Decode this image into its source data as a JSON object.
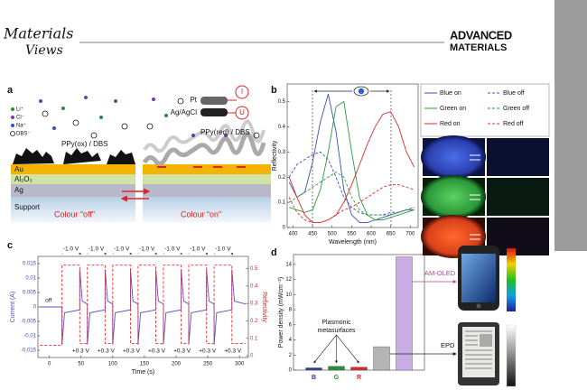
{
  "header": {
    "left_logo": [
      "Materials",
      "Views"
    ],
    "right_logo": [
      "ADVANCED",
      "MATERIALS"
    ]
  },
  "panel_a": {
    "label": "a",
    "ions": [
      "Li⁺",
      "Cl⁻",
      "Na⁺",
      "DBS⁻"
    ],
    "film_off": "PPy(ox) / DBS",
    "layers": [
      "Au",
      "Al₂O₃",
      "Ag",
      "Support"
    ],
    "state_off": "Colour “off”",
    "electrodes": [
      "Pt",
      "Ag/AgCl"
    ],
    "meters": [
      "I",
      "U"
    ],
    "film_on": "PPy(red) / DBS",
    "state_on": "Colour “on”"
  },
  "panel_b": {
    "label": "b",
    "chart_data": {
      "type": "line",
      "xlabel": "Wavelength (nm)",
      "ylabel": "Reflectivity",
      "x": [
        390,
        410,
        430,
        450,
        470,
        490,
        510,
        530,
        550,
        570,
        590,
        610,
        630,
        650,
        670,
        690,
        710
      ],
      "series": [
        {
          "name": "Blue on",
          "color": "#3a4fb8",
          "dash": false,
          "values": [
            0.18,
            0.12,
            0.14,
            0.26,
            0.42,
            0.53,
            0.38,
            0.15,
            0.05,
            0.02,
            0.02,
            0.03,
            0.04,
            0.05,
            0.06,
            0.07,
            0.07
          ]
        },
        {
          "name": "Blue off",
          "color": "#3a4fb8",
          "dash": true,
          "values": [
            0.2,
            0.25,
            0.27,
            0.29,
            0.3,
            0.27,
            0.2,
            0.12,
            0.08,
            0.06,
            0.05,
            0.05,
            0.05,
            0.06,
            0.06,
            0.07,
            0.08
          ]
        },
        {
          "name": "Green on",
          "color": "#2e9a3c",
          "dash": false,
          "values": [
            0.08,
            0.07,
            0.06,
            0.07,
            0.15,
            0.3,
            0.48,
            0.5,
            0.3,
            0.12,
            0.05,
            0.03,
            0.03,
            0.04,
            0.05,
            0.06,
            0.07
          ]
        },
        {
          "name": "Green off",
          "color": "#2e9a3c",
          "dash": true,
          "values": [
            0.1,
            0.12,
            0.14,
            0.16,
            0.18,
            0.2,
            0.22,
            0.2,
            0.12,
            0.07,
            0.05,
            0.05,
            0.05,
            0.05,
            0.06,
            0.07,
            0.08
          ]
        },
        {
          "name": "Red on",
          "color": "#e02a2a",
          "dash": false,
          "values": [
            0.2,
            0.12,
            0.05,
            0.02,
            0.02,
            0.03,
            0.05,
            0.1,
            0.17,
            0.25,
            0.33,
            0.4,
            0.45,
            0.46,
            0.4,
            0.3,
            0.24
          ]
        },
        {
          "name": "Red off",
          "color": "#e02a2a",
          "dash": true,
          "values": [
            0.12,
            0.06,
            0.03,
            0.02,
            0.02,
            0.03,
            0.05,
            0.07,
            0.08,
            0.1,
            0.12,
            0.14,
            0.16,
            0.17,
            0.17,
            0.16,
            0.15
          ]
        }
      ],
      "xlim": [
        385,
        720
      ],
      "ylim": [
        0,
        0.57
      ],
      "xticks": [
        400,
        450,
        500,
        550,
        600,
        650,
        700
      ],
      "yticks": [
        0,
        0.1,
        0.2,
        0.3,
        0.4,
        0.5
      ]
    }
  },
  "panel_c": {
    "label": "c",
    "on_labels": [
      "-1.0 V",
      "-1.0 V",
      "-1.0 V",
      "-1.0 V",
      "-1.0 V",
      "-1.0 V",
      "-1.0 V"
    ],
    "off_labels": [
      "+0.3 V",
      "+0.3 V",
      "+0.3 V",
      "+0.3 V",
      "+0.3 V",
      "+0.3 V",
      "+0.3 V"
    ],
    "start_label": "off",
    "chart_data": {
      "type": "line",
      "xlabel": "Time (s)",
      "ylabel": "Current (A)",
      "y2label": "Reflectivity",
      "series": [
        {
          "color": "#5b4fc4",
          "dash": false,
          "x": [
            -15,
            20,
            20,
            24,
            48,
            48,
            52,
            60,
            60,
            64,
            88,
            88,
            92,
            100,
            100,
            104,
            128,
            128,
            132,
            140,
            140,
            144,
            168,
            168,
            172,
            180,
            180,
            184,
            208,
            208,
            212,
            220,
            220,
            224,
            248,
            248,
            252,
            260,
            260,
            264,
            288,
            288,
            292,
            310
          ],
          "values": [
            0,
            0,
            -0.013,
            -0.002,
            -0.001,
            0.013,
            0.002,
            0.001,
            -0.013,
            -0.002,
            -0.001,
            0.013,
            0.002,
            0.001,
            -0.013,
            -0.002,
            -0.001,
            0.013,
            0.002,
            0.001,
            -0.013,
            -0.002,
            -0.001,
            0.013,
            0.002,
            0.001,
            -0.013,
            -0.002,
            -0.001,
            0.013,
            0.002,
            0.001,
            -0.013,
            -0.002,
            -0.001,
            0.013,
            0.002,
            0.001,
            -0.013,
            -0.002,
            -0.001,
            0.013,
            0.002,
            0.001
          ]
        },
        {
          "color": "#e83030",
          "dash": true,
          "axis": "y2",
          "x": [
            -15,
            20,
            20,
            48,
            48,
            60,
            60,
            88,
            88,
            100,
            100,
            128,
            128,
            140,
            140,
            168,
            168,
            180,
            180,
            208,
            208,
            220,
            220,
            248,
            248,
            260,
            260,
            288,
            288,
            310
          ],
          "values": [
            0.06,
            0.06,
            0.52,
            0.52,
            0.07,
            0.07,
            0.52,
            0.52,
            0.07,
            0.07,
            0.52,
            0.52,
            0.07,
            0.07,
            0.52,
            0.52,
            0.07,
            0.07,
            0.52,
            0.52,
            0.07,
            0.07,
            0.52,
            0.52,
            0.07,
            0.07,
            0.52,
            0.52,
            0.07,
            0.07
          ]
        }
      ],
      "xlim": [
        -18,
        314
      ],
      "ylim": [
        -0.0175,
        0.0175
      ],
      "y2lim": [
        -0.01,
        0.57
      ],
      "xticks": [
        0,
        50,
        100,
        150,
        200,
        250,
        300
      ],
      "yticks": [
        -0.015,
        -0.01,
        -0.005,
        0,
        0.005,
        0.01,
        0.015
      ],
      "y2ticks": [
        0,
        0.1,
        0.2,
        0.3,
        0.4,
        0.5
      ]
    }
  },
  "panel_d": {
    "label": "d",
    "plasmonic_label": [
      "Plasmonic",
      "metasurfaces"
    ],
    "epd_label": "EPD",
    "oled_label": "AM-OLED",
    "chart_data": {
      "type": "bar",
      "ylabel": "Power density (mWcm⁻²)",
      "categories": [
        "B",
        "G",
        "R",
        null,
        null
      ],
      "values": [
        0.3,
        0.5,
        0.4,
        3.1,
        15
      ],
      "colors": [
        "#2e3a9a",
        "#2e8b3a",
        "#d42a2a",
        "#b4b4b4",
        "#c9aee6"
      ],
      "ylim": [
        0,
        15.3
      ],
      "yticks": [
        0,
        2,
        4,
        6,
        8,
        10,
        12,
        14
      ]
    }
  }
}
